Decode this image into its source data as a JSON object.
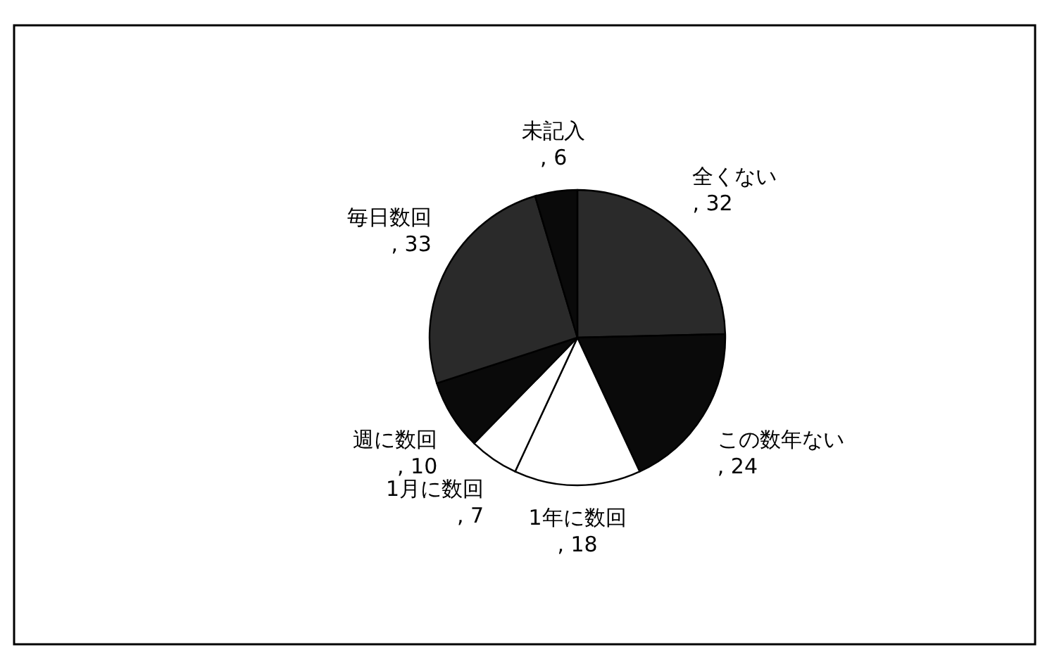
{
  "chart_data": {
    "type": "pie",
    "value_labels": [
      ", 32",
      ", 24",
      ", 18",
      ", 7",
      ", 10",
      ", 33",
      ", 6"
    ],
    "categories": [
      "全くない",
      "この数年ない",
      "1年に数回",
      "1月に数回",
      "週に数回",
      "毎日数回",
      "未記入"
    ],
    "values": [
      32,
      24,
      18,
      7,
      10,
      33,
      6
    ],
    "colors": [
      "#2a2a2a",
      "#0a0a0a",
      "#ffffff",
      "#ffffff",
      "#0a0a0a",
      "#2a2a2a",
      "#0a0a0a"
    ]
  }
}
